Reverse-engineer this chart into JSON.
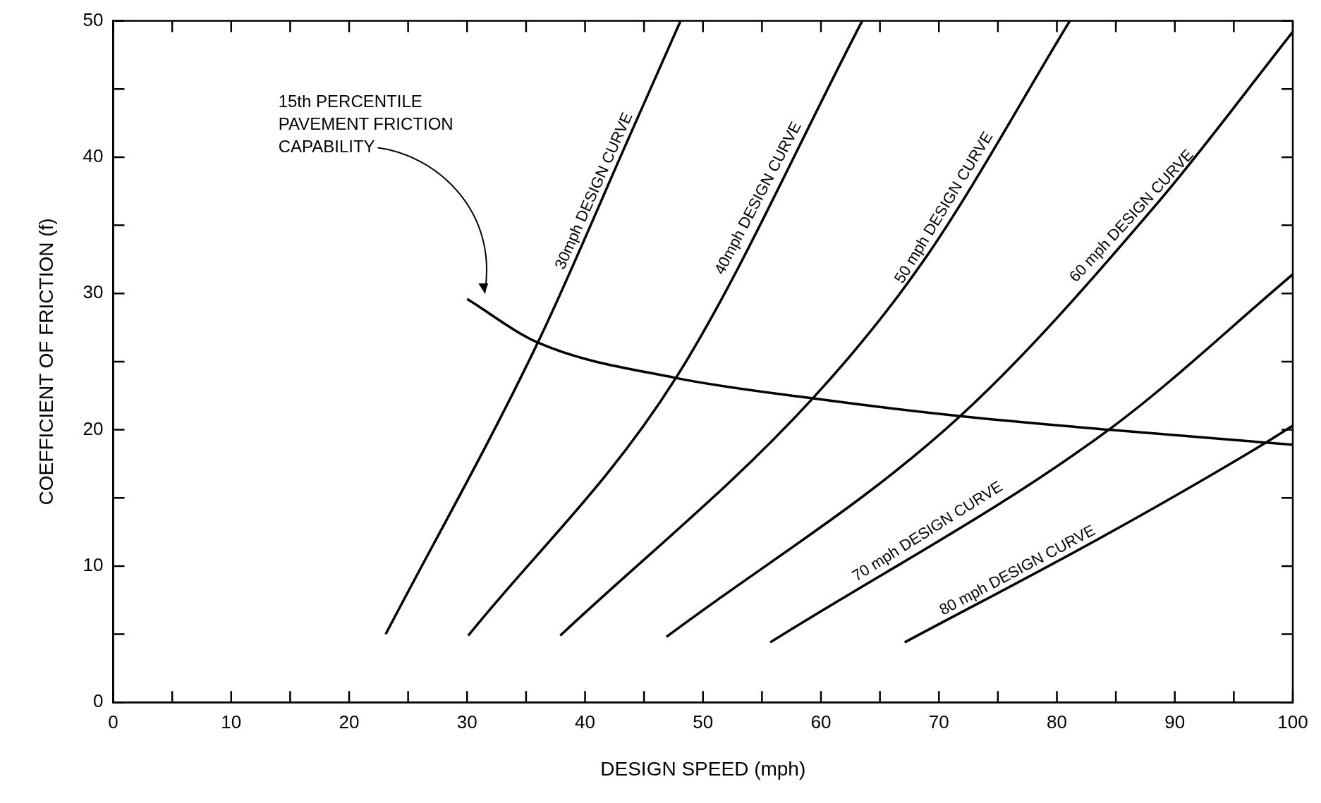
{
  "chart_data": {
    "type": "line",
    "xlabel": "DESIGN SPEED (mph)",
    "ylabel": "COEFFICIENT OF FRICTION (f)",
    "xlim": [
      0,
      100
    ],
    "ylim": [
      0,
      50
    ],
    "xticks": [
      0,
      {
        "value": 5,
        "label": null
      },
      10,
      {
        "value": 15,
        "label": null
      },
      20,
      {
        "value": 25,
        "label": null
      },
      30,
      {
        "value": 35,
        "label": null
      },
      40,
      {
        "value": 45,
        "label": null
      },
      50,
      {
        "value": 55,
        "label": null
      },
      60,
      {
        "value": 65,
        "label": null
      },
      70,
      {
        "value": 75,
        "label": null
      },
      80,
      {
        "value": 85,
        "label": null
      },
      90,
      {
        "value": 95,
        "label": null
      },
      100
    ],
    "yticks": [
      0,
      {
        "value": 5,
        "label": null
      },
      10,
      {
        "value": 15,
        "label": null
      },
      20,
      {
        "value": 25,
        "label": null
      },
      30,
      {
        "value": 35,
        "label": null
      },
      40,
      {
        "value": 45,
        "label": null
      },
      50
    ],
    "grid": false,
    "legend": false,
    "marker": "none",
    "line_style": "solid",
    "series": [
      {
        "name": "15th PERCENTILE PAVEMENT FRICTION CAPABILITY",
        "color": "#000000",
        "x": [
          30,
          36,
          47.7,
          59.3,
          71.8,
          84.4,
          100
        ],
        "values": [
          29.6,
          26.4,
          23.8,
          22.3,
          21,
          20,
          18.9
        ]
      },
      {
        "name": "30mph DESIGN CURVE",
        "color": "#000000",
        "x": [
          23.1,
          36,
          43.7,
          48.1
        ],
        "values": [
          5,
          26.4,
          41.4,
          50
        ]
      },
      {
        "name": "40mph DESIGN CURVE",
        "color": "#000000",
        "x": [
          30.1,
          47.7,
          63.5
        ],
        "values": [
          4.9,
          23.8,
          50
        ]
      },
      {
        "name": "50 mph DESIGN CURVE",
        "color": "#000000",
        "x": [
          37.9,
          59.3,
          68.7,
          81.1
        ],
        "values": [
          4.9,
          22.3,
          32.4,
          50
        ]
      },
      {
        "name": "60 mph DESIGN CURVE",
        "color": "#000000",
        "x": [
          46.9,
          71.8,
          88.5,
          100
        ],
        "values": [
          4.8,
          21,
          36.6,
          49.2
        ]
      },
      {
        "name": "70 mph DESIGN CURVE",
        "color": "#000000",
        "x": [
          55.7,
          84.4,
          100
        ],
        "values": [
          4.4,
          20,
          31.4
        ]
      },
      {
        "name": "80 mph DESIGN CURVE",
        "color": "#000000",
        "x": [
          67.1,
          84.6,
          97.8,
          100
        ],
        "values": [
          4.4,
          12.5,
          19.1,
          20.3
        ]
      }
    ]
  }
}
